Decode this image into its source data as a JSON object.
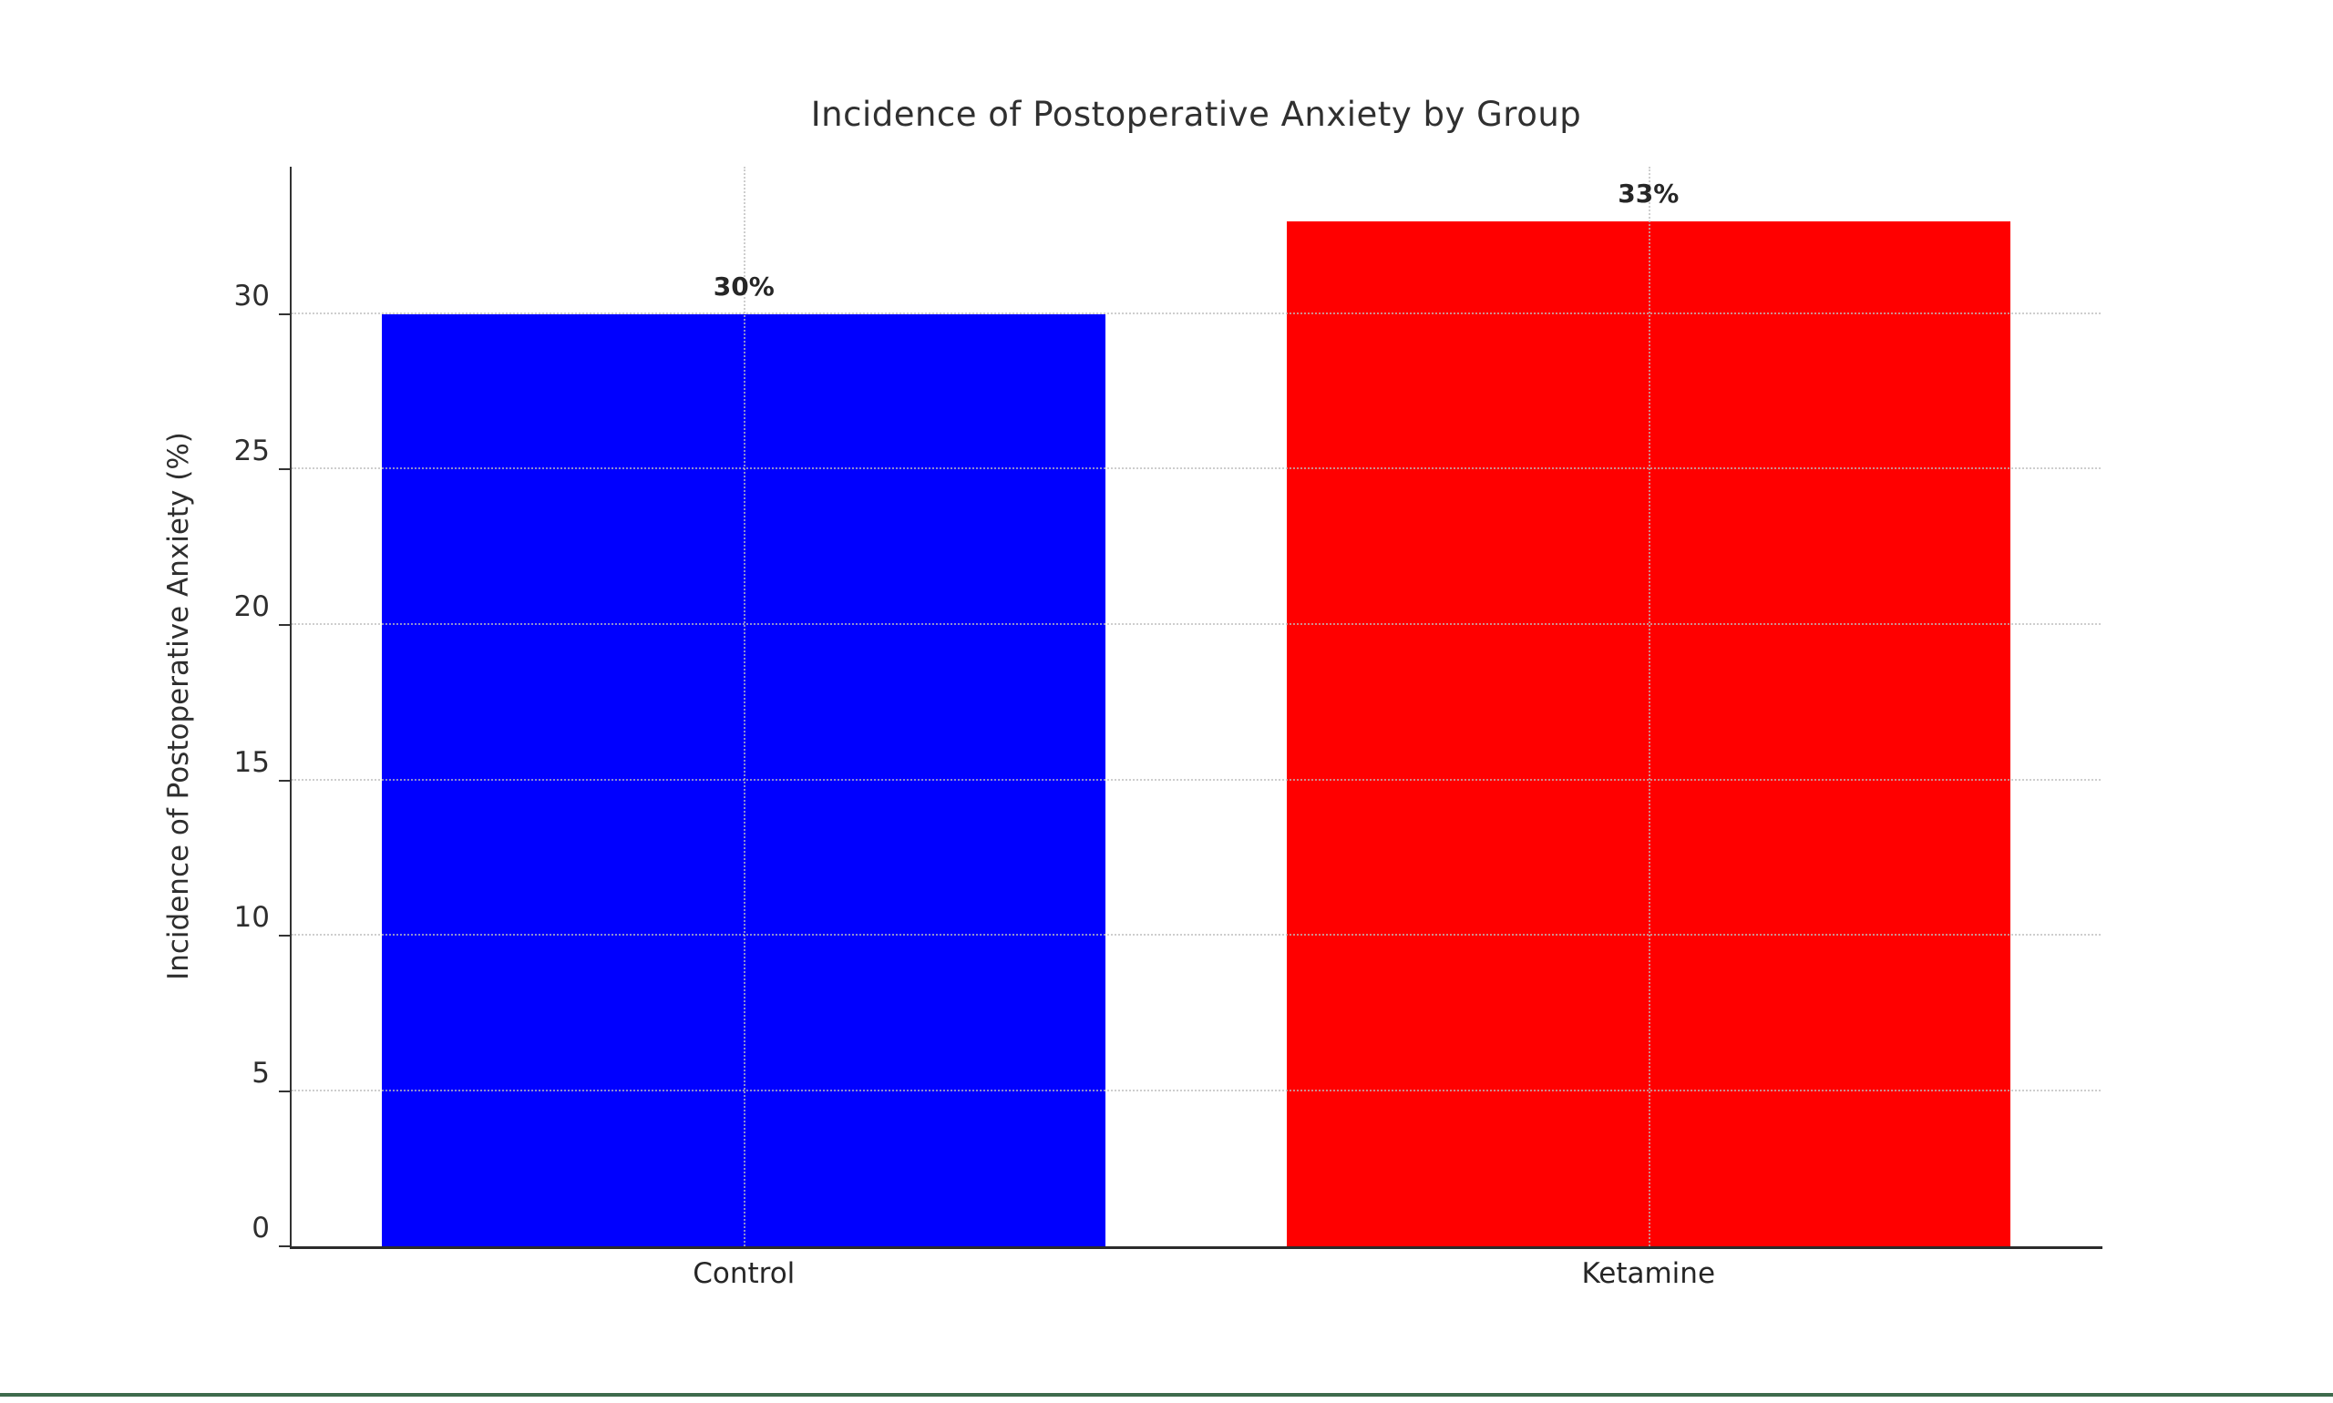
{
  "page": {
    "background": "#ffffff",
    "bottom_rule_color": "#3e6b4c"
  },
  "chart_data": {
    "type": "bar",
    "title": "Incidence of Postoperative Anxiety by Group",
    "categories": [
      "Control",
      "Ketamine"
    ],
    "values": [
      30,
      33
    ],
    "value_labels": [
      "30%",
      "33%"
    ],
    "bar_colors": [
      "#0000ff",
      "#ff0000"
    ],
    "xlabel": "",
    "ylabel": "Incidence of Postoperative Anxiety (%)",
    "ylim": [
      0,
      34.75
    ],
    "yticks": [
      0,
      5,
      10,
      15,
      20,
      25,
      30
    ],
    "grid": "dotted light-gray horizontal lines at yticks (except 0) and vertical lines at category centers",
    "legend": "none",
    "bar_width_fraction": 0.8,
    "axis_color": "#333333"
  }
}
